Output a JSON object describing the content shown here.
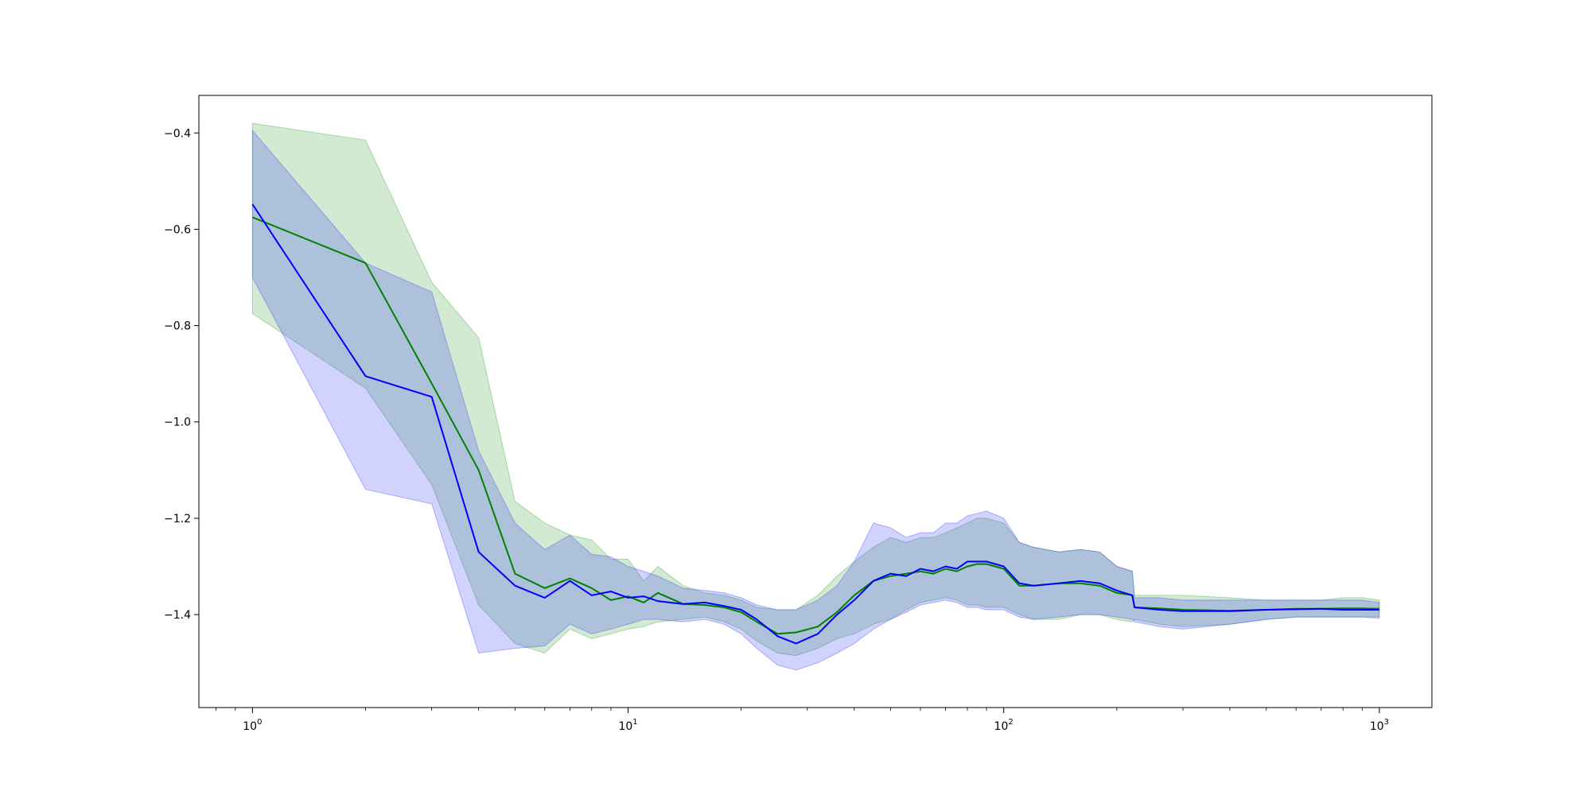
{
  "chart_data": {
    "type": "line",
    "title": "",
    "xlabel": "",
    "ylabel": "",
    "x_scale": "log",
    "xlim": [
      0.72,
      1380
    ],
    "ylim": [
      -1.593,
      -0.322
    ],
    "grid": false,
    "x_ticks": [
      {
        "value": 1,
        "base": "10",
        "exp": "0"
      },
      {
        "value": 10,
        "base": "10",
        "exp": "1"
      },
      {
        "value": 100,
        "base": "10",
        "exp": "2"
      },
      {
        "value": 1000,
        "base": "10",
        "exp": "3"
      }
    ],
    "y_ticks": [
      {
        "value": -0.4,
        "label": "−0.4"
      },
      {
        "value": -0.6,
        "label": "−0.6"
      },
      {
        "value": -0.8,
        "label": "−0.8"
      },
      {
        "value": -1.0,
        "label": "−1.0"
      },
      {
        "value": -1.2,
        "label": "−1.2"
      },
      {
        "value": -1.4,
        "label": "−1.4"
      }
    ],
    "series": [
      {
        "color": "#008000",
        "band_color": "#2ca02c",
        "band_opacity": 0.22,
        "x": [
          1,
          2,
          3,
          4,
          5,
          6,
          7,
          8,
          9,
          10,
          11,
          12,
          14,
          16,
          18,
          20,
          22,
          25,
          28,
          32,
          36,
          40,
          45,
          50,
          55,
          60,
          65,
          70,
          75,
          80,
          85,
          90,
          100,
          110,
          120,
          140,
          160,
          180,
          200,
          220,
          223,
          260,
          300,
          400,
          500,
          600,
          700,
          800,
          900,
          1000
        ],
        "mean": [
          -0.575,
          -0.67,
          -0.92,
          -1.1,
          -1.315,
          -1.345,
          -1.325,
          -1.345,
          -1.37,
          -1.362,
          -1.375,
          -1.355,
          -1.378,
          -1.38,
          -1.385,
          -1.395,
          -1.415,
          -1.44,
          -1.437,
          -1.425,
          -1.395,
          -1.36,
          -1.33,
          -1.32,
          -1.315,
          -1.31,
          -1.315,
          -1.305,
          -1.31,
          -1.3,
          -1.295,
          -1.295,
          -1.305,
          -1.34,
          -1.34,
          -1.335,
          -1.335,
          -1.34,
          -1.355,
          -1.36,
          -1.385,
          -1.387,
          -1.39,
          -1.392,
          -1.39,
          -1.388,
          -1.388,
          -1.387,
          -1.387,
          -1.388
        ],
        "lower": [
          -0.775,
          -0.93,
          -1.13,
          -1.38,
          -1.46,
          -1.48,
          -1.43,
          -1.45,
          -1.44,
          -1.43,
          -1.425,
          -1.415,
          -1.41,
          -1.405,
          -1.415,
          -1.43,
          -1.455,
          -1.48,
          -1.485,
          -1.47,
          -1.45,
          -1.44,
          -1.42,
          -1.41,
          -1.39,
          -1.375,
          -1.37,
          -1.365,
          -1.37,
          -1.38,
          -1.38,
          -1.385,
          -1.385,
          -1.4,
          -1.41,
          -1.41,
          -1.4,
          -1.4,
          -1.41,
          -1.415,
          -1.41,
          -1.42,
          -1.425,
          -1.42,
          -1.41,
          -1.405,
          -1.405,
          -1.405,
          -1.405,
          -1.408
        ],
        "upper": [
          -0.38,
          -0.415,
          -0.71,
          -0.825,
          -1.165,
          -1.21,
          -1.235,
          -1.245,
          -1.285,
          -1.285,
          -1.33,
          -1.3,
          -1.34,
          -1.355,
          -1.36,
          -1.37,
          -1.385,
          -1.39,
          -1.39,
          -1.36,
          -1.32,
          -1.29,
          -1.26,
          -1.24,
          -1.25,
          -1.24,
          -1.24,
          -1.23,
          -1.22,
          -1.21,
          -1.2,
          -1.2,
          -1.21,
          -1.25,
          -1.26,
          -1.27,
          -1.265,
          -1.27,
          -1.3,
          -1.31,
          -1.36,
          -1.36,
          -1.36,
          -1.365,
          -1.37,
          -1.37,
          -1.37,
          -1.365,
          -1.365,
          -1.37
        ]
      },
      {
        "color": "#0000ff",
        "band_color": "#3333ff",
        "band_opacity": 0.22,
        "x": [
          1,
          2,
          3,
          4,
          5,
          6,
          7,
          8,
          9,
          10,
          11,
          12,
          14,
          16,
          18,
          20,
          22,
          25,
          28,
          32,
          36,
          40,
          45,
          50,
          55,
          60,
          65,
          70,
          75,
          80,
          85,
          90,
          100,
          110,
          120,
          140,
          160,
          180,
          200,
          220,
          223,
          260,
          300,
          400,
          500,
          600,
          700,
          800,
          900,
          1000
        ],
        "mean": [
          -0.548,
          -0.905,
          -0.948,
          -1.27,
          -1.34,
          -1.365,
          -1.33,
          -1.36,
          -1.352,
          -1.365,
          -1.362,
          -1.372,
          -1.378,
          -1.375,
          -1.382,
          -1.39,
          -1.41,
          -1.445,
          -1.46,
          -1.44,
          -1.4,
          -1.37,
          -1.33,
          -1.315,
          -1.32,
          -1.305,
          -1.31,
          -1.3,
          -1.305,
          -1.29,
          -1.29,
          -1.29,
          -1.3,
          -1.335,
          -1.34,
          -1.335,
          -1.33,
          -1.335,
          -1.35,
          -1.36,
          -1.385,
          -1.39,
          -1.393,
          -1.393,
          -1.39,
          -1.389,
          -1.388,
          -1.39,
          -1.39,
          -1.39
        ],
        "lower": [
          -0.7,
          -1.14,
          -1.17,
          -1.48,
          -1.47,
          -1.465,
          -1.42,
          -1.44,
          -1.43,
          -1.42,
          -1.41,
          -1.41,
          -1.415,
          -1.41,
          -1.42,
          -1.44,
          -1.47,
          -1.505,
          -1.515,
          -1.5,
          -1.48,
          -1.46,
          -1.43,
          -1.41,
          -1.395,
          -1.38,
          -1.375,
          -1.37,
          -1.375,
          -1.385,
          -1.385,
          -1.39,
          -1.39,
          -1.405,
          -1.41,
          -1.405,
          -1.4,
          -1.4,
          -1.405,
          -1.41,
          -1.415,
          -1.425,
          -1.43,
          -1.42,
          -1.41,
          -1.405,
          -1.405,
          -1.405,
          -1.405,
          -1.405
        ],
        "upper": [
          -0.395,
          -0.67,
          -0.73,
          -1.06,
          -1.21,
          -1.265,
          -1.235,
          -1.275,
          -1.28,
          -1.3,
          -1.31,
          -1.32,
          -1.345,
          -1.35,
          -1.355,
          -1.365,
          -1.38,
          -1.39,
          -1.39,
          -1.37,
          -1.34,
          -1.29,
          -1.21,
          -1.22,
          -1.24,
          -1.23,
          -1.23,
          -1.21,
          -1.21,
          -1.195,
          -1.19,
          -1.185,
          -1.2,
          -1.25,
          -1.26,
          -1.27,
          -1.265,
          -1.27,
          -1.3,
          -1.31,
          -1.365,
          -1.365,
          -1.37,
          -1.37,
          -1.37,
          -1.37,
          -1.37,
          -1.37,
          -1.37,
          -1.375
        ]
      }
    ]
  }
}
